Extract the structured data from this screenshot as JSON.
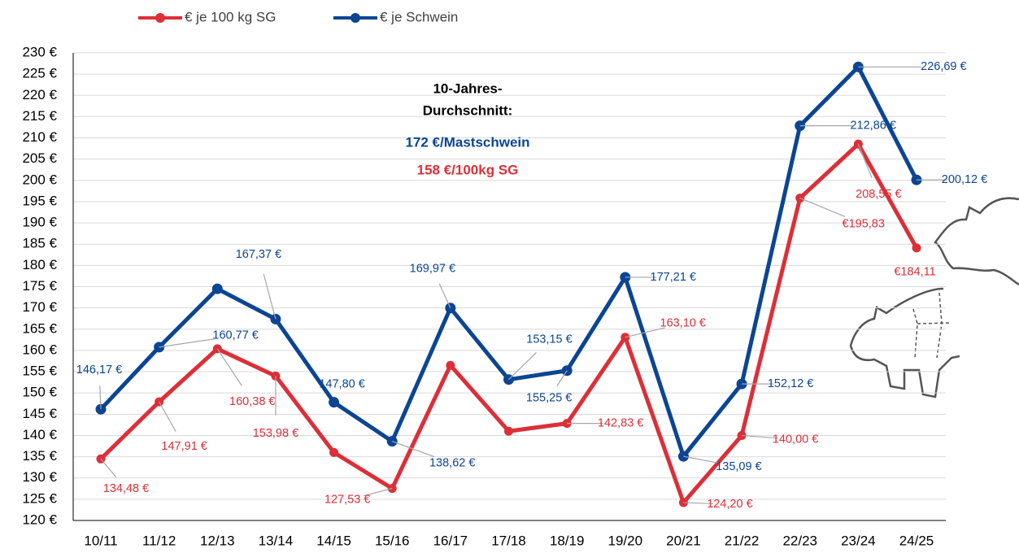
{
  "chart_data": {
    "type": "line",
    "categories": [
      "10/11",
      "11/12",
      "12/13",
      "13/14",
      "14/15",
      "15/16",
      "16/17",
      "17/18",
      "18/19",
      "19/20",
      "20/21",
      "21/22",
      "22/23",
      "23/24",
      "24/25"
    ],
    "series": [
      {
        "name": "€ je 100 kg SG",
        "color": "#dc2f38",
        "values": [
          134.48,
          147.91,
          160.38,
          153.98,
          136,
          127.53,
          156.5,
          141,
          142.83,
          163.1,
          124.2,
          140.0,
          195.83,
          208.55,
          184.11
        ],
        "value_labels": [
          "134,48 €",
          "147,91 €",
          "160,38 €",
          "153,98 €",
          null,
          "127,53 €",
          null,
          null,
          "142,83 €",
          "163,10 €",
          "124,20 €",
          "140,00 €",
          "€195,83",
          "208,55 €",
          "€184,11"
        ]
      },
      {
        "name": "€ je Schwein",
        "color": "#0b4593",
        "values": [
          146.17,
          160.77,
          174.5,
          167.37,
          147.8,
          138.62,
          169.97,
          153.15,
          155.25,
          177.21,
          135.09,
          152.12,
          212.86,
          226.69,
          200.12
        ],
        "value_labels": [
          "146,17 €",
          "160,77 €",
          null,
          "167,37 €",
          "147,80 €",
          "138,62 €",
          "169,97 €",
          "153,15 €",
          "155,25 €",
          "177,21 €",
          "135,09 €",
          "152,12 €",
          "212,86 €",
          "226,69 €",
          "200,12 €"
        ]
      }
    ],
    "ylim": [
      120,
      230
    ],
    "yticks": [
      {
        "value": 120,
        "label": "120 €"
      },
      {
        "value": 125,
        "label": "125 €"
      },
      {
        "value": 130,
        "label": "130 €"
      },
      {
        "value": 135,
        "label": "135 €"
      },
      {
        "value": 140,
        "label": "140 €"
      },
      {
        "value": 145,
        "label": "145 €"
      },
      {
        "value": 150,
        "label": "150 €"
      },
      {
        "value": 155,
        "label": "155 €"
      },
      {
        "value": 160,
        "label": "160 €"
      },
      {
        "value": 165,
        "label": "165 €"
      },
      {
        "value": 170,
        "label": "170 €"
      },
      {
        "value": 175,
        "label": "175 €"
      },
      {
        "value": 180,
        "label": "180 €"
      },
      {
        "value": 185,
        "label": "185 €"
      },
      {
        "value": 190,
        "label": "190 €"
      },
      {
        "value": 195,
        "label": "195 €"
      },
      {
        "value": 200,
        "label": "200 €"
      },
      {
        "value": 205,
        "label": "205 €"
      },
      {
        "value": 210,
        "label": "210 €"
      },
      {
        "value": 215,
        "label": "215 €"
      },
      {
        "value": 220,
        "label": "220 €"
      },
      {
        "value": 225,
        "label": "225 €"
      },
      {
        "value": 230,
        "label": "230 €"
      }
    ],
    "grid": true,
    "annotations": [
      {
        "text": "10-Jahres-",
        "color": "#000000"
      },
      {
        "text": "Durchschnitt:",
        "color": "#000000"
      },
      {
        "text": "172 €/Mastschwein",
        "color": "#0b4593"
      },
      {
        "text": "158 €/100kg SG",
        "color": "#dc2f38"
      }
    ]
  }
}
